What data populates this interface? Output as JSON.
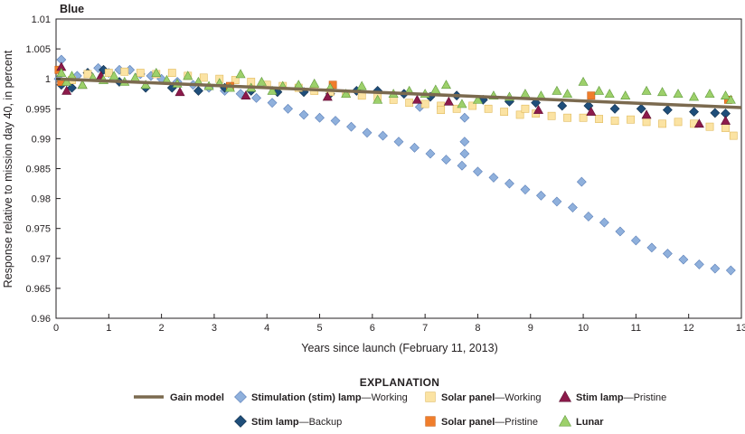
{
  "chart_data": {
    "type": "scatter",
    "title": "Blue",
    "xlabel": "Years since launch (February 11, 2013)",
    "ylabel": "Response relative to mission day 40, in percent",
    "xlim": [
      0,
      13
    ],
    "ylim": [
      0.96,
      1.01
    ],
    "xticks": [
      0,
      1,
      2,
      3,
      4,
      5,
      6,
      7,
      8,
      9,
      10,
      11,
      12,
      13
    ],
    "yticks": [
      "0.96",
      "0.965",
      "0.97",
      "0.975",
      "0.98",
      "0.985",
      "0.99",
      "0.995",
      "1",
      "1.005",
      "1.01"
    ],
    "grid": false,
    "legend_title": "EXPLANATION",
    "legend_position": "bottom",
    "series": [
      {
        "key": "gain",
        "name": "Gain model",
        "bold": "Gain model",
        "rest": "",
        "marker": "line",
        "color": "#7b6a4f",
        "points": [
          [
            0,
            1.0
          ],
          [
            13,
            0.9952
          ]
        ]
      },
      {
        "key": "stim_working",
        "name": "Stimulation (stim) lamp—Working",
        "bold": "Stimulation (stim) lamp",
        "rest": "—Working",
        "marker": "diamond",
        "color": "#8fb0dc",
        "stroke": "#5b7fb8",
        "points": [
          [
            0.05,
            1.0
          ],
          [
            0.1,
            1.0032
          ],
          [
            0.2,
            0.9995
          ],
          [
            0.4,
            1.0005
          ],
          [
            0.6,
            1.001
          ],
          [
            0.8,
            1.0018
          ],
          [
            1.0,
            1.001
          ],
          [
            1.2,
            1.0015
          ],
          [
            1.4,
            1.0015
          ],
          [
            1.6,
            1.0008
          ],
          [
            1.8,
            1.0005
          ],
          [
            2.0,
            1.0
          ],
          [
            2.3,
            0.9995
          ],
          [
            2.6,
            0.999
          ],
          [
            2.9,
            0.9985
          ],
          [
            3.2,
            0.998
          ],
          [
            3.5,
            0.9975
          ],
          [
            3.8,
            0.9968
          ],
          [
            4.1,
            0.996
          ],
          [
            4.4,
            0.995
          ],
          [
            4.7,
            0.994
          ],
          [
            5.0,
            0.9935
          ],
          [
            5.3,
            0.993
          ],
          [
            5.6,
            0.992
          ],
          [
            5.9,
            0.991
          ],
          [
            6.2,
            0.9905
          ],
          [
            6.5,
            0.9895
          ],
          [
            6.8,
            0.9885
          ],
          [
            7.1,
            0.9875
          ],
          [
            7.4,
            0.9865
          ],
          [
            7.7,
            0.9855
          ],
          [
            8.0,
            0.9845
          ],
          [
            8.3,
            0.9835
          ],
          [
            8.6,
            0.9825
          ],
          [
            8.9,
            0.9815
          ],
          [
            9.2,
            0.9805
          ],
          [
            9.5,
            0.9795
          ],
          [
            9.8,
            0.9785
          ],
          [
            10.1,
            0.977
          ],
          [
            10.4,
            0.976
          ],
          [
            10.7,
            0.9745
          ],
          [
            11.0,
            0.973
          ],
          [
            11.3,
            0.9718
          ],
          [
            11.6,
            0.9708
          ],
          [
            11.9,
            0.9698
          ],
          [
            12.2,
            0.969
          ],
          [
            12.5,
            0.9683
          ],
          [
            12.8,
            0.968
          ],
          [
            6.9,
            0.9953
          ],
          [
            7.75,
            0.9935
          ],
          [
            7.75,
            0.9895
          ],
          [
            7.75,
            0.9875
          ],
          [
            9.97,
            0.9828
          ]
        ]
      },
      {
        "key": "stim_backup",
        "name": "Stim lamp—Backup",
        "bold": "Stim lamp",
        "rest": "—Backup",
        "marker": "diamond",
        "color": "#1f4e7a",
        "stroke": "#12304d",
        "points": [
          [
            0.1,
            0.999
          ],
          [
            0.3,
            0.9985
          ],
          [
            0.6,
            1.001
          ],
          [
            0.9,
            1.0015
          ],
          [
            1.2,
            0.9995
          ],
          [
            1.7,
            0.9985
          ],
          [
            2.2,
            0.9985
          ],
          [
            2.7,
            0.998
          ],
          [
            3.2,
            0.9985
          ],
          [
            3.7,
            0.998
          ],
          [
            4.2,
            0.9978
          ],
          [
            4.7,
            0.9978
          ],
          [
            5.2,
            0.9975
          ],
          [
            5.7,
            0.998
          ],
          [
            6.1,
            0.998
          ],
          [
            6.6,
            0.9975
          ],
          [
            7.1,
            0.997
          ],
          [
            7.6,
            0.9972
          ],
          [
            8.1,
            0.9965
          ],
          [
            8.6,
            0.9962
          ],
          [
            9.1,
            0.996
          ],
          [
            9.6,
            0.9955
          ],
          [
            10.1,
            0.9955
          ],
          [
            10.6,
            0.995
          ],
          [
            11.1,
            0.995
          ],
          [
            11.6,
            0.9948
          ],
          [
            12.1,
            0.9945
          ],
          [
            12.5,
            0.9943
          ],
          [
            12.7,
            0.9942
          ]
        ]
      },
      {
        "key": "solar_working",
        "name": "Solar panel—Working",
        "bold": "Solar panel",
        "rest": "—Working",
        "marker": "square",
        "color": "#fbe3a3",
        "stroke": "#e0b95a",
        "points": [
          [
            0.1,
            0.9995
          ],
          [
            0.3,
            0.9998
          ],
          [
            0.6,
            1.0008
          ],
          [
            1.0,
            1.001
          ],
          [
            1.3,
            1.0012
          ],
          [
            1.6,
            1.001
          ],
          [
            1.9,
            1.0008
          ],
          [
            2.2,
            1.001
          ],
          [
            2.5,
            1.0005
          ],
          [
            2.8,
            1.0002
          ],
          [
            3.1,
            1.0
          ],
          [
            3.4,
            0.9998
          ],
          [
            3.7,
            0.9995
          ],
          [
            4.0,
            0.999
          ],
          [
            4.3,
            0.9988
          ],
          [
            4.6,
            0.9985
          ],
          [
            4.9,
            0.998
          ],
          [
            5.2,
            0.9978
          ],
          [
            5.5,
            0.9975
          ],
          [
            5.8,
            0.9972
          ],
          [
            6.1,
            0.997
          ],
          [
            6.4,
            0.9965
          ],
          [
            6.7,
            0.996
          ],
          [
            7.0,
            0.9958
          ],
          [
            7.3,
            0.9955
          ],
          [
            7.6,
            0.995
          ],
          [
            7.9,
            0.9955
          ],
          [
            8.2,
            0.995
          ],
          [
            8.5,
            0.9945
          ],
          [
            8.8,
            0.994
          ],
          [
            9.1,
            0.9942
          ],
          [
            9.4,
            0.9938
          ],
          [
            9.7,
            0.9935
          ],
          [
            10.0,
            0.9935
          ],
          [
            10.3,
            0.9933
          ],
          [
            10.6,
            0.993
          ],
          [
            10.9,
            0.9932
          ],
          [
            11.2,
            0.9928
          ],
          [
            11.5,
            0.9925
          ],
          [
            11.8,
            0.9928
          ],
          [
            12.1,
            0.9925
          ],
          [
            12.4,
            0.992
          ],
          [
            12.7,
            0.9918
          ],
          [
            12.85,
            0.9905
          ],
          [
            7.3,
            0.9948
          ],
          [
            8.9,
            0.995
          ]
        ]
      },
      {
        "key": "solar_pristine",
        "name": "Solar panel—Pristine",
        "bold": "Solar panel",
        "rest": "—Pristine",
        "marker": "square",
        "color": "#f07d2b",
        "stroke": "#c85f15",
        "points": [
          [
            0.05,
            1.0015
          ],
          [
            0.1,
            0.9995
          ],
          [
            3.3,
            0.9988
          ],
          [
            5.25,
            0.999
          ],
          [
            10.15,
            0.9972
          ],
          [
            12.75,
            0.9965
          ]
        ]
      },
      {
        "key": "stim_pristine",
        "name": "Stim lamp—Pristine",
        "bold": "Stim lamp",
        "rest": "—Pristine",
        "marker": "triangle",
        "color": "#8c1a4b",
        "stroke": "#5e0f31",
        "points": [
          [
            0.1,
            1.002
          ],
          [
            0.2,
            0.998
          ],
          [
            0.5,
            0.999
          ],
          [
            0.85,
            1.0005
          ],
          [
            2.35,
            0.9978
          ],
          [
            3.6,
            0.9972
          ],
          [
            5.15,
            0.997
          ],
          [
            6.85,
            0.9965
          ],
          [
            7.45,
            0.9962
          ],
          [
            9.15,
            0.9948
          ],
          [
            10.15,
            0.9945
          ],
          [
            11.2,
            0.994
          ],
          [
            12.2,
            0.9925
          ],
          [
            12.7,
            0.993
          ]
        ]
      },
      {
        "key": "lunar",
        "name": "Lunar",
        "bold": "Lunar",
        "rest": "",
        "marker": "triangle",
        "color": "#9dd06b",
        "stroke": "#5f9a3b",
        "points": [
          [
            0.1,
            1.001
          ],
          [
            0.2,
            0.9995
          ],
          [
            0.3,
            1.0005
          ],
          [
            0.5,
            0.999
          ],
          [
            0.7,
            1.0002
          ],
          [
            0.9,
            0.9998
          ],
          [
            1.1,
            1.0005
          ],
          [
            1.3,
            0.9995
          ],
          [
            1.5,
            1.0002
          ],
          [
            1.7,
            0.999
          ],
          [
            1.9,
            1.001
          ],
          [
            2.1,
            0.9998
          ],
          [
            2.3,
            0.9992
          ],
          [
            2.5,
            1.0005
          ],
          [
            2.7,
            0.9995
          ],
          [
            2.9,
            0.9988
          ],
          [
            3.1,
            0.9993
          ],
          [
            3.3,
            0.9985
          ],
          [
            3.5,
            1.0008
          ],
          [
            3.7,
            0.9985
          ],
          [
            3.9,
            0.9995
          ],
          [
            4.1,
            0.998
          ],
          [
            4.3,
            0.9988
          ],
          [
            4.6,
            0.999
          ],
          [
            4.9,
            0.9992
          ],
          [
            5.2,
            0.9985
          ],
          [
            5.5,
            0.9975
          ],
          [
            5.8,
            0.9988
          ],
          [
            6.1,
            0.9965
          ],
          [
            6.4,
            0.9975
          ],
          [
            6.7,
            0.998
          ],
          [
            7.0,
            0.9975
          ],
          [
            7.2,
            0.9982
          ],
          [
            7.4,
            0.999
          ],
          [
            7.7,
            0.9958
          ],
          [
            8.0,
            0.9965
          ],
          [
            8.3,
            0.9972
          ],
          [
            8.6,
            0.997
          ],
          [
            8.9,
            0.9975
          ],
          [
            9.2,
            0.9972
          ],
          [
            9.5,
            0.998
          ],
          [
            9.7,
            0.9975
          ],
          [
            10.0,
            0.9995
          ],
          [
            10.3,
            0.998
          ],
          [
            10.5,
            0.9975
          ],
          [
            10.8,
            0.9972
          ],
          [
            11.2,
            0.998
          ],
          [
            11.5,
            0.9978
          ],
          [
            11.8,
            0.9975
          ],
          [
            12.1,
            0.997
          ],
          [
            12.4,
            0.9975
          ],
          [
            12.7,
            0.9972
          ],
          [
            12.8,
            0.9965
          ]
        ]
      }
    ]
  }
}
